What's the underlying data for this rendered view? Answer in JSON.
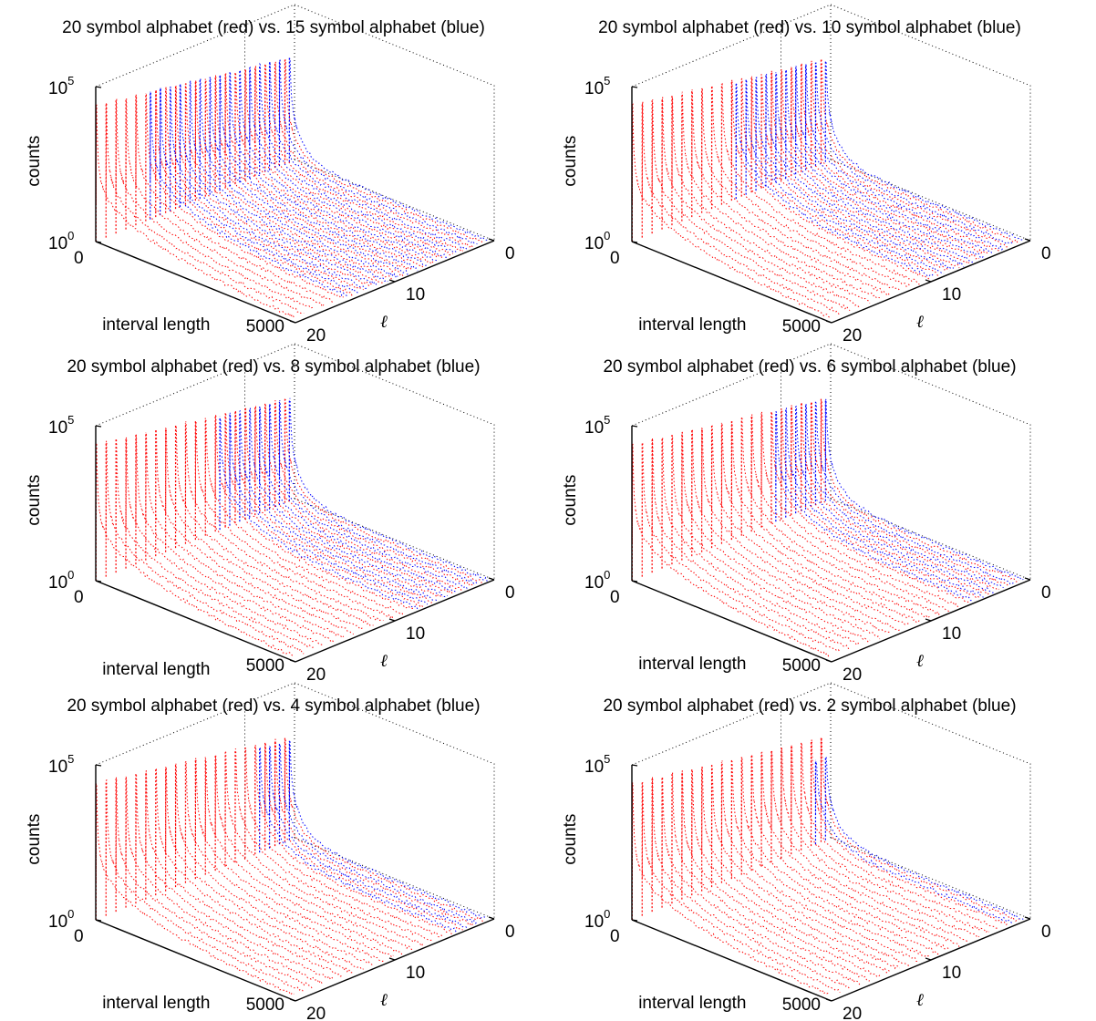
{
  "figure": {
    "colors": {
      "red": "#ff0000",
      "blue": "#0000ff",
      "axis": "#000000",
      "background": "#ffffff"
    }
  },
  "chart_data": [
    {
      "type": "line3d",
      "title": "20 symbol alphabet (red) vs. 15 symbol alphabet (blue)",
      "xlabel": "interval length",
      "ylabel": "ℓ",
      "zlabel": "counts",
      "xlim": [
        0,
        5000
      ],
      "ylim": [
        0,
        20
      ],
      "zlim_exponent": [
        0,
        5
      ],
      "z_scale": "log",
      "x_ticks": [
        "0",
        "5000"
      ],
      "y_ticks": [
        "0",
        "10",
        "20"
      ],
      "z_ticks": [
        {
          "base": "10",
          "exp": "0"
        },
        {
          "base": "10",
          "exp": "5"
        }
      ],
      "grid": false,
      "series": [
        {
          "name": "20 symbol alphabet",
          "color": "red",
          "ell_values": [
            1,
            2,
            3,
            4,
            5,
            6,
            7,
            8,
            9,
            10,
            11,
            12,
            13,
            14,
            15,
            16,
            17,
            18,
            19,
            20
          ],
          "peak_exponent": 4.4
        },
        {
          "name": "15 symbol alphabet",
          "color": "blue",
          "ell_values": [
            1,
            2,
            3,
            4,
            5,
            6,
            7,
            8,
            9,
            10,
            11,
            12,
            13,
            14,
            15
          ],
          "peak_exponent": 4.4
        }
      ]
    },
    {
      "type": "line3d",
      "title": "20 symbol alphabet (red) vs. 10 symbol alphabet (blue)",
      "xlabel": "interval length",
      "ylabel": "ℓ",
      "zlabel": "counts",
      "xlim": [
        0,
        5000
      ],
      "ylim": [
        0,
        20
      ],
      "zlim_exponent": [
        0,
        5
      ],
      "z_scale": "log",
      "x_ticks": [
        "0",
        "5000"
      ],
      "y_ticks": [
        "0",
        "10",
        "20"
      ],
      "z_ticks": [
        {
          "base": "10",
          "exp": "0"
        },
        {
          "base": "10",
          "exp": "5"
        }
      ],
      "grid": false,
      "series": [
        {
          "name": "20 symbol alphabet",
          "color": "red",
          "ell_values": [
            1,
            2,
            3,
            4,
            5,
            6,
            7,
            8,
            9,
            10,
            11,
            12,
            13,
            14,
            15,
            16,
            17,
            18,
            19,
            20
          ],
          "peak_exponent": 4.4
        },
        {
          "name": "10 symbol alphabet",
          "color": "blue",
          "ell_values": [
            1,
            2,
            3,
            4,
            5,
            6,
            7,
            8,
            9,
            10
          ],
          "peak_exponent": 4.3
        }
      ]
    },
    {
      "type": "line3d",
      "title": "20 symbol alphabet (red) vs. 8 symbol alphabet (blue)",
      "xlabel": "interval length",
      "ylabel": "ℓ",
      "zlabel": "counts",
      "xlim": [
        0,
        5000
      ],
      "ylim": [
        0,
        20
      ],
      "zlim_exponent": [
        0,
        5
      ],
      "z_scale": "log",
      "x_ticks": [
        "0",
        "5000"
      ],
      "y_ticks": [
        "0",
        "10",
        "20"
      ],
      "z_ticks": [
        {
          "base": "10",
          "exp": "0"
        },
        {
          "base": "10",
          "exp": "5"
        }
      ],
      "grid": false,
      "series": [
        {
          "name": "20 symbol alphabet",
          "color": "red",
          "ell_values": [
            1,
            2,
            3,
            4,
            5,
            6,
            7,
            8,
            9,
            10,
            11,
            12,
            13,
            14,
            15,
            16,
            17,
            18,
            19,
            20
          ],
          "peak_exponent": 4.4
        },
        {
          "name": "8 symbol alphabet",
          "color": "blue",
          "ell_values": [
            1,
            2,
            3,
            4,
            5,
            6,
            7,
            8
          ],
          "peak_exponent": 4.3
        }
      ]
    },
    {
      "type": "line3d",
      "title": "20 symbol alphabet (red) vs. 6 symbol alphabet (blue)",
      "xlabel": "interval length",
      "ylabel": "ℓ",
      "zlabel": "counts",
      "xlim": [
        0,
        5000
      ],
      "ylim": [
        0,
        20
      ],
      "zlim_exponent": [
        0,
        5
      ],
      "z_scale": "log",
      "x_ticks": [
        "0",
        "5000"
      ],
      "y_ticks": [
        "0",
        "10",
        "20"
      ],
      "z_ticks": [
        {
          "base": "10",
          "exp": "0"
        },
        {
          "base": "10",
          "exp": "5"
        }
      ],
      "grid": false,
      "series": [
        {
          "name": "20 symbol alphabet",
          "color": "red",
          "ell_values": [
            1,
            2,
            3,
            4,
            5,
            6,
            7,
            8,
            9,
            10,
            11,
            12,
            13,
            14,
            15,
            16,
            17,
            18,
            19,
            20
          ],
          "peak_exponent": 4.4
        },
        {
          "name": "6 symbol alphabet",
          "color": "blue",
          "ell_values": [
            1,
            2,
            3,
            4,
            5,
            6
          ],
          "peak_exponent": 4.3
        }
      ]
    },
    {
      "type": "line3d",
      "title": "20 symbol alphabet (red) vs. 4 symbol alphabet (blue)",
      "xlabel": "interval length",
      "ylabel": "ℓ",
      "zlabel": "counts",
      "xlim": [
        0,
        5000
      ],
      "ylim": [
        0,
        20
      ],
      "zlim_exponent": [
        0,
        5
      ],
      "z_scale": "log",
      "x_ticks": [
        "0",
        "5000"
      ],
      "y_ticks": [
        "0",
        "10",
        "20"
      ],
      "z_ticks": [
        {
          "base": "10",
          "exp": "0"
        },
        {
          "base": "10",
          "exp": "5"
        }
      ],
      "grid": false,
      "series": [
        {
          "name": "20 symbol alphabet",
          "color": "red",
          "ell_values": [
            1,
            2,
            3,
            4,
            5,
            6,
            7,
            8,
            9,
            10,
            11,
            12,
            13,
            14,
            15,
            16,
            17,
            18,
            19,
            20
          ],
          "peak_exponent": 4.4
        },
        {
          "name": "4 symbol alphabet",
          "color": "blue",
          "ell_values": [
            1,
            2,
            3,
            4
          ],
          "peak_exponent": 4.2
        }
      ]
    },
    {
      "type": "line3d",
      "title": "20 symbol alphabet (red) vs. 2 symbol alphabet (blue)",
      "xlabel": "interval length",
      "ylabel": "ℓ",
      "zlabel": "counts",
      "xlim": [
        0,
        5000
      ],
      "ylim": [
        0,
        20
      ],
      "zlim_exponent": [
        0,
        5
      ],
      "z_scale": "log",
      "x_ticks": [
        "0",
        "5000"
      ],
      "y_ticks": [
        "0",
        "10",
        "20"
      ],
      "z_ticks": [
        {
          "base": "10",
          "exp": "0"
        },
        {
          "base": "10",
          "exp": "5"
        }
      ],
      "grid": false,
      "series": [
        {
          "name": "20 symbol alphabet",
          "color": "red",
          "ell_values": [
            1,
            2,
            3,
            4,
            5,
            6,
            7,
            8,
            9,
            10,
            11,
            12,
            13,
            14,
            15,
            16,
            17,
            18,
            19,
            20
          ],
          "peak_exponent": 4.4
        },
        {
          "name": "2 symbol alphabet",
          "color": "blue",
          "ell_values": [
            1,
            2
          ],
          "peak_exponent": 3.5
        }
      ]
    }
  ]
}
